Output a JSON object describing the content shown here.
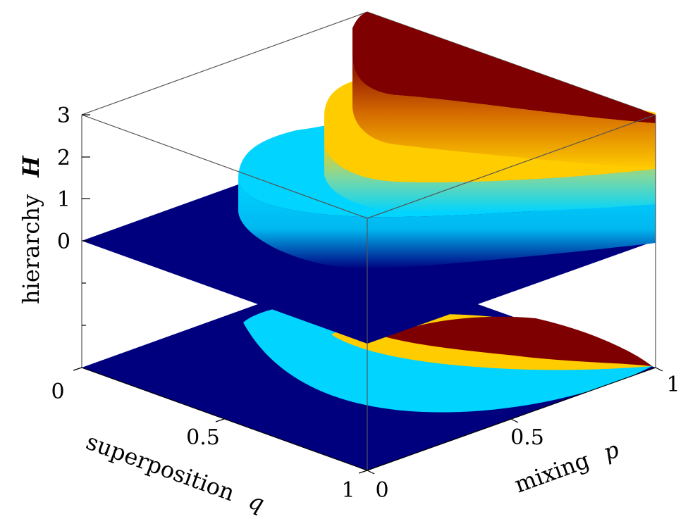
{
  "chart_data": {
    "type": "surface",
    "view": "3d",
    "xlabel": "mixing",
    "xlabel_symbol": "p",
    "ylabel": "superposition",
    "ylabel_symbol": "q",
    "zlabel": "hierarchy",
    "zlabel_symbol": "H",
    "x_ticks": [
      "0",
      "0.5",
      "1"
    ],
    "y_ticks": [
      "0",
      "0.5",
      "1"
    ],
    "z_ticks": [
      "0",
      "1",
      "2",
      "3"
    ],
    "xlim": [
      0,
      1
    ],
    "ylim": [
      0,
      1
    ],
    "zlim": [
      0,
      3
    ],
    "levels": [
      {
        "value": 0,
        "color": "#00007f"
      },
      {
        "value": 1,
        "color": "#00d4ff"
      },
      {
        "value": 2,
        "color": "#ffcc00"
      },
      {
        "value": 3,
        "color": "#7f0000"
      }
    ],
    "projection_on_floor": true,
    "grid": false
  }
}
